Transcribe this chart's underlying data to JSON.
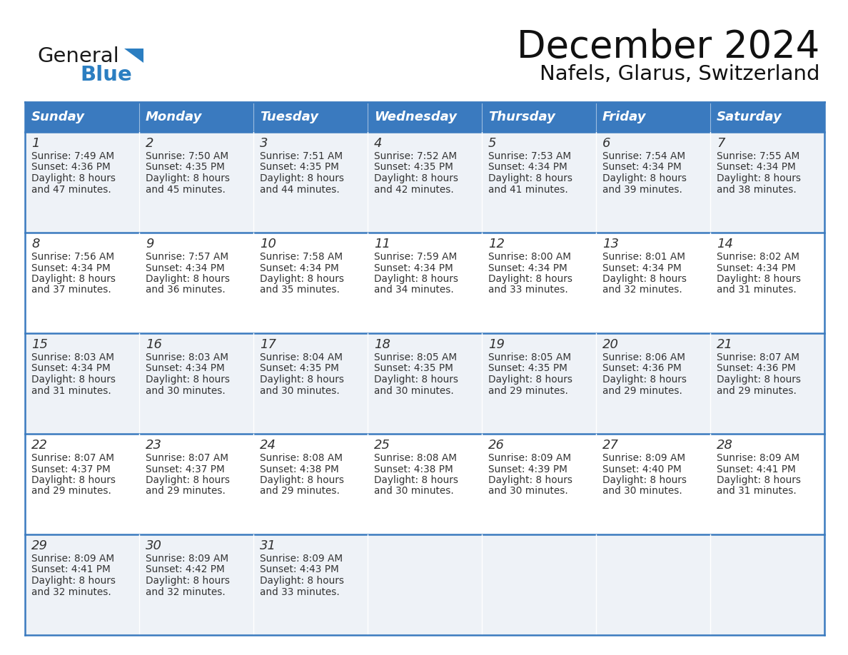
{
  "title": "December 2024",
  "subtitle": "Nafels, Glarus, Switzerland",
  "header_bg": "#3a7abf",
  "header_text": "#ffffff",
  "cell_bg_even": "#eef2f7",
  "cell_bg_odd": "#ffffff",
  "border_color": "#3a7abf",
  "text_color": "#333333",
  "days_of_week": [
    "Sunday",
    "Monday",
    "Tuesday",
    "Wednesday",
    "Thursday",
    "Friday",
    "Saturday"
  ],
  "weeks": [
    [
      {
        "day": "1",
        "sunrise": "7:49 AM",
        "sunset": "4:36 PM",
        "daylight_line1": "Daylight: 8 hours",
        "daylight_line2": "and 47 minutes."
      },
      {
        "day": "2",
        "sunrise": "7:50 AM",
        "sunset": "4:35 PM",
        "daylight_line1": "Daylight: 8 hours",
        "daylight_line2": "and 45 minutes."
      },
      {
        "day": "3",
        "sunrise": "7:51 AM",
        "sunset": "4:35 PM",
        "daylight_line1": "Daylight: 8 hours",
        "daylight_line2": "and 44 minutes."
      },
      {
        "day": "4",
        "sunrise": "7:52 AM",
        "sunset": "4:35 PM",
        "daylight_line1": "Daylight: 8 hours",
        "daylight_line2": "and 42 minutes."
      },
      {
        "day": "5",
        "sunrise": "7:53 AM",
        "sunset": "4:34 PM",
        "daylight_line1": "Daylight: 8 hours",
        "daylight_line2": "and 41 minutes."
      },
      {
        "day": "6",
        "sunrise": "7:54 AM",
        "sunset": "4:34 PM",
        "daylight_line1": "Daylight: 8 hours",
        "daylight_line2": "and 39 minutes."
      },
      {
        "day": "7",
        "sunrise": "7:55 AM",
        "sunset": "4:34 PM",
        "daylight_line1": "Daylight: 8 hours",
        "daylight_line2": "and 38 minutes."
      }
    ],
    [
      {
        "day": "8",
        "sunrise": "7:56 AM",
        "sunset": "4:34 PM",
        "daylight_line1": "Daylight: 8 hours",
        "daylight_line2": "and 37 minutes."
      },
      {
        "day": "9",
        "sunrise": "7:57 AM",
        "sunset": "4:34 PM",
        "daylight_line1": "Daylight: 8 hours",
        "daylight_line2": "and 36 minutes."
      },
      {
        "day": "10",
        "sunrise": "7:58 AM",
        "sunset": "4:34 PM",
        "daylight_line1": "Daylight: 8 hours",
        "daylight_line2": "and 35 minutes."
      },
      {
        "day": "11",
        "sunrise": "7:59 AM",
        "sunset": "4:34 PM",
        "daylight_line1": "Daylight: 8 hours",
        "daylight_line2": "and 34 minutes."
      },
      {
        "day": "12",
        "sunrise": "8:00 AM",
        "sunset": "4:34 PM",
        "daylight_line1": "Daylight: 8 hours",
        "daylight_line2": "and 33 minutes."
      },
      {
        "day": "13",
        "sunrise": "8:01 AM",
        "sunset": "4:34 PM",
        "daylight_line1": "Daylight: 8 hours",
        "daylight_line2": "and 32 minutes."
      },
      {
        "day": "14",
        "sunrise": "8:02 AM",
        "sunset": "4:34 PM",
        "daylight_line1": "Daylight: 8 hours",
        "daylight_line2": "and 31 minutes."
      }
    ],
    [
      {
        "day": "15",
        "sunrise": "8:03 AM",
        "sunset": "4:34 PM",
        "daylight_line1": "Daylight: 8 hours",
        "daylight_line2": "and 31 minutes."
      },
      {
        "day": "16",
        "sunrise": "8:03 AM",
        "sunset": "4:34 PM",
        "daylight_line1": "Daylight: 8 hours",
        "daylight_line2": "and 30 minutes."
      },
      {
        "day": "17",
        "sunrise": "8:04 AM",
        "sunset": "4:35 PM",
        "daylight_line1": "Daylight: 8 hours",
        "daylight_line2": "and 30 minutes."
      },
      {
        "day": "18",
        "sunrise": "8:05 AM",
        "sunset": "4:35 PM",
        "daylight_line1": "Daylight: 8 hours",
        "daylight_line2": "and 30 minutes."
      },
      {
        "day": "19",
        "sunrise": "8:05 AM",
        "sunset": "4:35 PM",
        "daylight_line1": "Daylight: 8 hours",
        "daylight_line2": "and 29 minutes."
      },
      {
        "day": "20",
        "sunrise": "8:06 AM",
        "sunset": "4:36 PM",
        "daylight_line1": "Daylight: 8 hours",
        "daylight_line2": "and 29 minutes."
      },
      {
        "day": "21",
        "sunrise": "8:07 AM",
        "sunset": "4:36 PM",
        "daylight_line1": "Daylight: 8 hours",
        "daylight_line2": "and 29 minutes."
      }
    ],
    [
      {
        "day": "22",
        "sunrise": "8:07 AM",
        "sunset": "4:37 PM",
        "daylight_line1": "Daylight: 8 hours",
        "daylight_line2": "and 29 minutes."
      },
      {
        "day": "23",
        "sunrise": "8:07 AM",
        "sunset": "4:37 PM",
        "daylight_line1": "Daylight: 8 hours",
        "daylight_line2": "and 29 minutes."
      },
      {
        "day": "24",
        "sunrise": "8:08 AM",
        "sunset": "4:38 PM",
        "daylight_line1": "Daylight: 8 hours",
        "daylight_line2": "and 29 minutes."
      },
      {
        "day": "25",
        "sunrise": "8:08 AM",
        "sunset": "4:38 PM",
        "daylight_line1": "Daylight: 8 hours",
        "daylight_line2": "and 30 minutes."
      },
      {
        "day": "26",
        "sunrise": "8:09 AM",
        "sunset": "4:39 PM",
        "daylight_line1": "Daylight: 8 hours",
        "daylight_line2": "and 30 minutes."
      },
      {
        "day": "27",
        "sunrise": "8:09 AM",
        "sunset": "4:40 PM",
        "daylight_line1": "Daylight: 8 hours",
        "daylight_line2": "and 30 minutes."
      },
      {
        "day": "28",
        "sunrise": "8:09 AM",
        "sunset": "4:41 PM",
        "daylight_line1": "Daylight: 8 hours",
        "daylight_line2": "and 31 minutes."
      }
    ],
    [
      {
        "day": "29",
        "sunrise": "8:09 AM",
        "sunset": "4:41 PM",
        "daylight_line1": "Daylight: 8 hours",
        "daylight_line2": "and 32 minutes."
      },
      {
        "day": "30",
        "sunrise": "8:09 AM",
        "sunset": "4:42 PM",
        "daylight_line1": "Daylight: 8 hours",
        "daylight_line2": "and 32 minutes."
      },
      {
        "day": "31",
        "sunrise": "8:09 AM",
        "sunset": "4:43 PM",
        "daylight_line1": "Daylight: 8 hours",
        "daylight_line2": "and 33 minutes."
      },
      null,
      null,
      null,
      null
    ]
  ],
  "logo_general_color": "#1a1a1a",
  "logo_blue_color": "#2b7ec1",
  "logo_triangle_color": "#2b7ec1"
}
